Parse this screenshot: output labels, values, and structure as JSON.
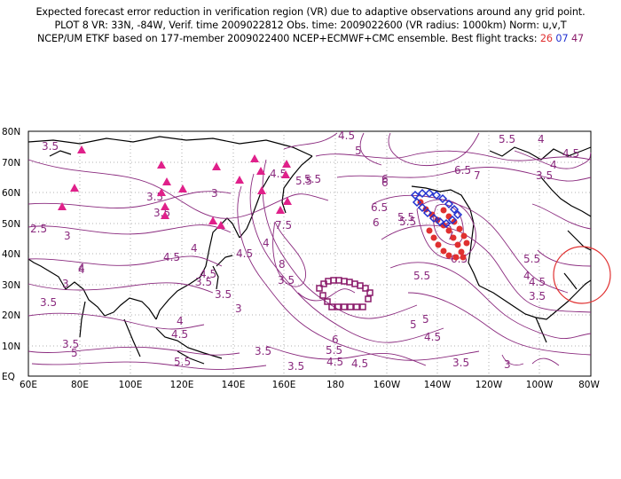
{
  "title": {
    "line1": "Expected forecast error reduction in verification region (VR) due to adaptive observations around any grid point.",
    "line2": "PLOT 8 VR: 33N, -84W, Verif. time 2009022812 Obs. time: 2009022600 (VR radius: 1000km) Norm: u,v,T",
    "line3_prefix": "NCEP/UM ETKF based on 177-member 2009022400 NCEP+ECMWF+CMC ensemble. Best flight tracks:",
    "track1": "26",
    "track2": "07",
    "track3": "47"
  },
  "axes": {
    "y_ticks": [
      "80N",
      "70N",
      "60N",
      "50N",
      "40N",
      "30N",
      "20N",
      "10N",
      "EQ"
    ],
    "x_ticks": [
      "60E",
      "80E",
      "100E",
      "120E",
      "140E",
      "160E",
      "180",
      "160W",
      "140W",
      "120W",
      "100W",
      "80W"
    ]
  },
  "contour_labels": [
    "3.5",
    "4.5",
    "5.5",
    "4",
    "4.5",
    "6",
    "5.5",
    "6.5",
    "7",
    "4.5",
    "5",
    "3.5",
    "3",
    "3",
    "3.5",
    "5",
    "5.5",
    "6",
    "6.5",
    "3.5",
    "4",
    "4",
    "3.5",
    "2.5",
    "3",
    "4",
    "3.5",
    "4.5",
    "3.5",
    "3",
    "4.5",
    "4",
    "4.5",
    "3.5",
    "5",
    "5.5",
    "3.5",
    "4",
    "4.5",
    "5.5",
    "7.5",
    "8",
    "3.5",
    "6",
    "5.5",
    "4.5",
    "5",
    "5.5",
    "6",
    "3.5",
    "4.5",
    "5.5",
    "7",
    "6.5",
    "5",
    "4.5",
    "4",
    "3.5",
    "3",
    "5.5",
    "4.5",
    "4",
    "3.5"
  ],
  "colors": {
    "contour": "#8a2a7e",
    "track_26": "#e03030",
    "track_07": "#2030d0",
    "track_47": "#8a1a6a",
    "triangles": "#e0208a",
    "verification_circle": "#e03030",
    "grid": "#999999",
    "coast": "#000000"
  }
}
